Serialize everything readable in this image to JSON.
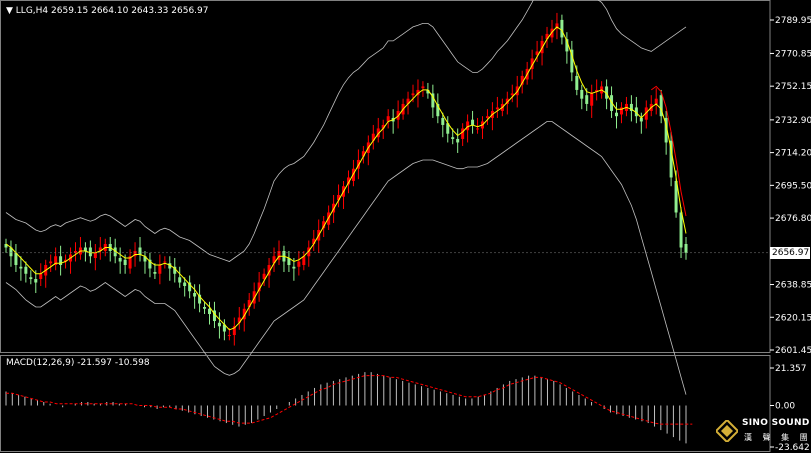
{
  "header": {
    "symbol": "LLG,H4",
    "ohlc": "2659.15 2664.10 2643.33 2656.97"
  },
  "macd_header": {
    "label": "MACD(12,26,9)",
    "values": "-21.597 -10.598"
  },
  "colors": {
    "background": "#000000",
    "bull_candle": "#ff0000",
    "bear_candle": "#90ee90",
    "ma_line": "#ffff00",
    "signal_line": "#ff0000",
    "bollinger": "#c0c0c0",
    "macd_hist": "#c0c0c0"
  },
  "current_price": "2656.97",
  "logo": {
    "name": "SINO SOUND",
    "cn": "漢 聲 集 團"
  },
  "chart_data": [
    {
      "type": "candlestick",
      "title": "LLG,H4",
      "y_ticks": [
        "2789.95",
        "2770.85",
        "2752.15",
        "2732.90",
        "2714.20",
        "2695.50",
        "2676.80",
        "2656.97",
        "2638.85",
        "2620.15",
        "2601.45"
      ],
      "ylim": [
        2601.45,
        2789.95
      ],
      "grid": false,
      "close": [
        2660,
        2655,
        2650,
        2648,
        2645,
        2642,
        2640,
        2645,
        2650,
        2652,
        2655,
        2650,
        2653,
        2656,
        2658,
        2660,
        2658,
        2655,
        2657,
        2660,
        2662,
        2658,
        2655,
        2652,
        2650,
        2655,
        2658,
        2656,
        2652,
        2648,
        2645,
        2650,
        2652,
        2648,
        2645,
        2640,
        2638,
        2635,
        2632,
        2628,
        2625,
        2622,
        2618,
        2615,
        2612,
        2610,
        2615,
        2620,
        2625,
        2630,
        2635,
        2640,
        2645,
        2650,
        2655,
        2658,
        2652,
        2650,
        2648,
        2652,
        2655,
        2660,
        2665,
        2670,
        2675,
        2680,
        2685,
        2690,
        2695,
        2700,
        2705,
        2710,
        2715,
        2720,
        2725,
        2728,
        2730,
        2735,
        2732,
        2738,
        2742,
        2745,
        2748,
        2750,
        2752,
        2748,
        2740,
        2735,
        2730,
        2725,
        2722,
        2720,
        2728,
        2732,
        2730,
        2728,
        2732,
        2735,
        2738,
        2740,
        2742,
        2745,
        2748,
        2752,
        2758,
        2762,
        2768,
        2772,
        2778,
        2782,
        2785,
        2788,
        2780,
        2772,
        2760,
        2750,
        2745,
        2742,
        2748,
        2750,
        2752,
        2745,
        2738,
        2735,
        2740,
        2742,
        2738,
        2735,
        2732,
        2740,
        2742,
        2745,
        2735,
        2720,
        2700,
        2680,
        2660,
        2657
      ],
      "bollinger_upper": [
        2680,
        2678,
        2676,
        2675,
        2674,
        2672,
        2670,
        2669,
        2670,
        2672,
        2673,
        2672,
        2674,
        2675,
        2676,
        2677,
        2676,
        2675,
        2676,
        2678,
        2679,
        2678,
        2676,
        2674,
        2672,
        2674,
        2676,
        2675,
        2672,
        2670,
        2668,
        2670,
        2671,
        2670,
        2668,
        2666,
        2665,
        2664,
        2662,
        2660,
        2658,
        2656,
        2655,
        2654,
        2653,
        2652,
        2654,
        2656,
        2658,
        2662,
        2668,
        2675,
        2682,
        2690,
        2698,
        2702,
        2705,
        2707,
        2708,
        2710,
        2712,
        2716,
        2720,
        2725,
        2730,
        2736,
        2742,
        2748,
        2753,
        2757,
        2760,
        2762,
        2765,
        2768,
        2770,
        2772,
        2774,
        2778,
        2778,
        2780,
        2782,
        2784,
        2786,
        2787,
        2788,
        2788,
        2786,
        2782,
        2778,
        2774,
        2770,
        2766,
        2764,
        2762,
        2760,
        2760,
        2762,
        2765,
        2768,
        2772,
        2775,
        2778,
        2782,
        2786,
        2790,
        2795,
        2800,
        2806,
        2812,
        2818,
        2822,
        2824,
        2826,
        2826,
        2824,
        2820,
        2815,
        2810,
        2806,
        2802,
        2800,
        2796,
        2790,
        2785,
        2782,
        2780,
        2778,
        2776,
        2774,
        2773,
        2772,
        2774,
        2776,
        2778,
        2780,
        2782,
        2784,
        2786
      ],
      "bollinger_lower": [
        2640,
        2638,
        2636,
        2633,
        2630,
        2628,
        2626,
        2626,
        2628,
        2630,
        2632,
        2630,
        2632,
        2634,
        2636,
        2638,
        2637,
        2635,
        2636,
        2638,
        2640,
        2638,
        2636,
        2634,
        2632,
        2634,
        2636,
        2635,
        2632,
        2630,
        2628,
        2628,
        2628,
        2626,
        2624,
        2620,
        2616,
        2612,
        2608,
        2604,
        2600,
        2596,
        2592,
        2590,
        2588,
        2587,
        2588,
        2590,
        2594,
        2598,
        2602,
        2606,
        2610,
        2614,
        2618,
        2620,
        2622,
        2624,
        2626,
        2628,
        2630,
        2634,
        2638,
        2642,
        2646,
        2650,
        2654,
        2658,
        2662,
        2666,
        2670,
        2674,
        2678,
        2682,
        2686,
        2690,
        2694,
        2698,
        2700,
        2702,
        2704,
        2706,
        2708,
        2709,
        2710,
        2710,
        2710,
        2709,
        2708,
        2707,
        2706,
        2705,
        2705,
        2706,
        2706,
        2706,
        2707,
        2708,
        2710,
        2712,
        2714,
        2716,
        2718,
        2720,
        2722,
        2724,
        2726,
        2728,
        2730,
        2732,
        2732,
        2730,
        2728,
        2726,
        2724,
        2722,
        2720,
        2718,
        2716,
        2714,
        2712,
        2708,
        2704,
        2700,
        2696,
        2690,
        2684,
        2676,
        2666,
        2656,
        2646,
        2636,
        2626,
        2616,
        2606,
        2596,
        2586,
        2576
      ],
      "ma_fast": [
        2662,
        2660,
        2657,
        2654,
        2651,
        2648,
        2645,
        2645,
        2647,
        2649,
        2651,
        2651,
        2652,
        2654,
        2656,
        2658,
        2658,
        2657,
        2657,
        2658,
        2660,
        2660,
        2658,
        2656,
        2654,
        2654,
        2656,
        2656,
        2655,
        2652,
        2650,
        2650,
        2651,
        2650,
        2648,
        2645,
        2642,
        2639,
        2636,
        2632,
        2629,
        2626,
        2622,
        2619,
        2616,
        2613,
        2614,
        2617,
        2621,
        2626,
        2631,
        2636,
        2641,
        2646,
        2651,
        2655,
        2655,
        2654,
        2652,
        2653,
        2655,
        2658,
        2662,
        2667,
        2672,
        2677,
        2682,
        2687,
        2692,
        2697,
        2702,
        2707,
        2712,
        2717,
        2721,
        2725,
        2728,
        2732,
        2733,
        2735,
        2739,
        2742,
        2745,
        2748,
        2750,
        2750,
        2746,
        2741,
        2736,
        2731,
        2727,
        2724,
        2726,
        2729,
        2730,
        2729,
        2730,
        2733,
        2736,
        2738,
        2740,
        2743,
        2746,
        2749,
        2754,
        2759,
        2764,
        2769,
        2774,
        2779,
        2783,
        2786,
        2784,
        2778,
        2770,
        2761,
        2754,
        2749,
        2748,
        2749,
        2750,
        2748,
        2743,
        2739,
        2739,
        2740,
        2739,
        2737,
        2734,
        2737,
        2740,
        2742,
        2739,
        2730,
        2716,
        2700,
        2682,
        2668
      ]
    },
    {
      "type": "bar",
      "title": "MACD(12,26,9)",
      "y_ticks": [
        "21.357",
        "0.00",
        "-23.642"
      ],
      "ylim": [
        -23.642,
        21.357
      ],
      "values": [
        8,
        7,
        6,
        5,
        4,
        3,
        2,
        1,
        0,
        -1,
        0,
        1,
        2,
        2,
        1,
        1,
        2,
        2,
        1,
        1,
        0,
        0,
        -1,
        -1,
        -2,
        -1,
        -1,
        -2,
        -3,
        -4,
        -5,
        -6,
        -7,
        -8,
        -9,
        -10,
        -11,
        -12,
        -11,
        -10,
        -8,
        -6,
        -4,
        -2,
        0,
        2,
        4,
        6,
        8,
        10,
        12,
        13,
        14,
        15,
        16,
        17,
        18,
        19,
        19,
        18,
        17,
        16,
        15,
        14,
        13,
        12,
        11,
        10,
        9,
        8,
        7,
        6,
        5,
        4,
        4,
        5,
        6,
        8,
        10,
        12,
        14,
        15,
        16,
        17,
        17,
        16,
        15,
        14,
        12,
        10,
        8,
        6,
        4,
        2,
        0,
        -2,
        -4,
        -5,
        -6,
        -7,
        -8,
        -9,
        -10,
        -12,
        -14,
        -16,
        -18,
        -20,
        -21.6
      ],
      "signal": [
        7,
        7,
        6,
        5,
        4,
        3,
        2,
        2,
        1,
        1,
        1,
        1,
        1,
        1,
        1,
        1,
        1,
        1,
        1,
        1,
        1,
        0,
        0,
        0,
        -1,
        -1,
        -1,
        -2,
        -2,
        -3,
        -4,
        -5,
        -6,
        -7,
        -8,
        -9,
        -9,
        -10,
        -10,
        -10,
        -9,
        -8,
        -7,
        -5,
        -3,
        -1,
        1,
        3,
        5,
        7,
        9,
        10,
        12,
        13,
        14,
        15,
        16,
        17,
        17,
        17,
        17,
        16,
        16,
        15,
        14,
        13,
        12,
        11,
        10,
        9,
        8,
        7,
        6,
        5,
        5,
        5,
        6,
        7,
        9,
        10,
        12,
        13,
        14,
        15,
        16,
        16,
        15,
        14,
        13,
        11,
        9,
        7,
        5,
        3,
        1,
        -1,
        -3,
        -4,
        -5,
        -6,
        -7,
        -8,
        -9,
        -10,
        -10.6,
        -10.6,
        -10.6,
        -10.6,
        -10.6,
        -10.6
      ]
    }
  ]
}
